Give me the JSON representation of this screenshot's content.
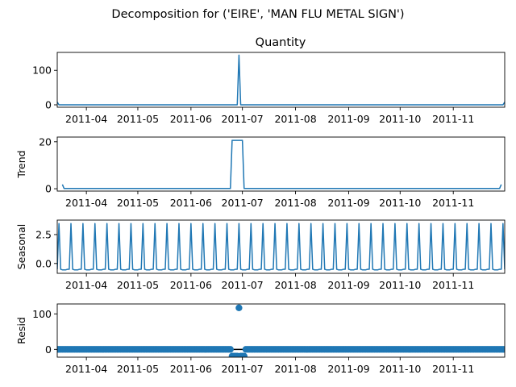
{
  "suptitle": "Decomposition for ('EIRE', 'MAN FLU METAL SIGN')",
  "colors": {
    "line": "#1f77b4",
    "axis": "#000000",
    "background": "#ffffff"
  },
  "x_tick_labels": [
    "2011-04",
    "2011-05",
    "2011-06",
    "2011-07",
    "2011-08",
    "2011-09",
    "2011-10",
    "2011-11"
  ],
  "chart_data": [
    {
      "type": "line",
      "title": "Quantity",
      "ylabel": "",
      "x_range": [
        "2011-03-15",
        "2011-12-01"
      ],
      "yticks": [
        0,
        100
      ],
      "ylim": [
        -7,
        152
      ],
      "legend": "none",
      "grid": false,
      "series": [
        {
          "x": [
            "2011-03-15",
            "2011-03-16",
            "2011-06-28",
            "2011-06-29",
            "2011-06-30",
            "2011-11-30",
            "2011-12-01"
          ],
          "values": [
            8,
            0,
            0,
            144,
            0,
            0,
            8
          ]
        }
      ]
    },
    {
      "type": "line",
      "title": "",
      "ylabel": "Trend",
      "yticks": [
        0,
        20
      ],
      "ylim": [
        -1,
        22
      ],
      "legend": "none",
      "grid": false,
      "series": [
        {
          "x": [
            "2011-03-18",
            "2011-03-19",
            "2011-06-24",
            "2011-06-25",
            "2011-07-01",
            "2011-07-02",
            "2011-11-28",
            "2011-11-29"
          ],
          "values": [
            1.8,
            0.1,
            0.1,
            20.6,
            20.6,
            0.1,
            0.1,
            1.8
          ]
        }
      ]
    },
    {
      "type": "line",
      "title": "",
      "ylabel": "Seasonal",
      "yticks": [
        0.0,
        2.5
      ],
      "ylim": [
        -0.85,
        3.75
      ],
      "legend": "none",
      "grid": false,
      "period_days": 7,
      "series": [
        {
          "pattern": [
            -0.5,
            3.45,
            -0.5,
            -0.55,
            -0.55,
            -0.55,
            -0.5
          ]
        }
      ]
    },
    {
      "type": "scatter",
      "title": "",
      "ylabel": "Resid",
      "yticks": [
        0,
        100
      ],
      "ylim": [
        -22,
        128
      ],
      "legend": "none",
      "grid": false,
      "baseline": 0,
      "series": [
        {
          "baseline_points_daily": true,
          "outliers": [
            {
              "x": "2011-06-25",
              "value": -19
            },
            {
              "x": "2011-06-26",
              "value": -19
            },
            {
              "x": "2011-06-27",
              "value": -19
            },
            {
              "x": "2011-06-28",
              "value": -19
            },
            {
              "x": "2011-06-29",
              "value": 117
            },
            {
              "x": "2011-06-30",
              "value": -19
            },
            {
              "x": "2011-07-01",
              "value": -19
            },
            {
              "x": "2011-07-02",
              "value": -19
            }
          ]
        }
      ]
    }
  ]
}
